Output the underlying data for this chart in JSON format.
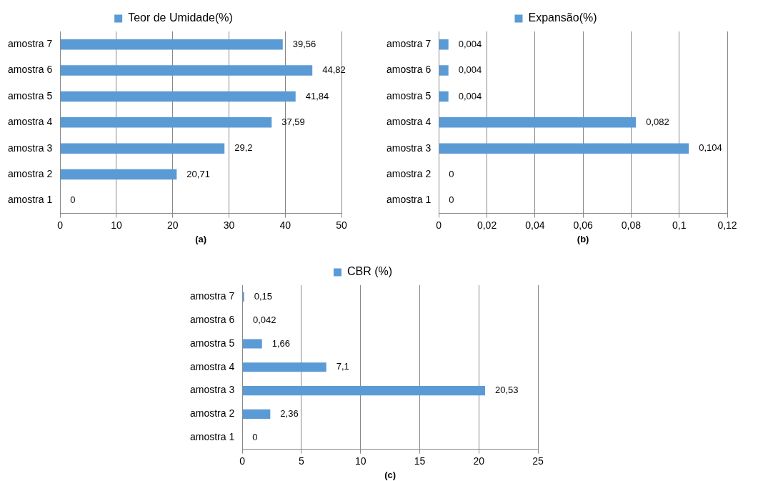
{
  "chart_data": [
    {
      "type": "bar",
      "orientation": "horizontal",
      "xlabel": "(a)",
      "categories": [
        "amostra 7",
        "amostra 6",
        "amostra 5",
        "amostra 4",
        "amostra 3",
        "amostra 2",
        "amostra 1"
      ],
      "series": [
        {
          "name": "Teor de Umidade(%)",
          "color": "#5b9bd5",
          "values": [
            39.56,
            44.82,
            41.84,
            37.59,
            29.2,
            20.71,
            0
          ],
          "value_labels": [
            "39,56",
            "44,82",
            "41,84",
            "37,59",
            "29,2",
            "20,71",
            "0"
          ]
        }
      ],
      "xlim": [
        0,
        50
      ],
      "xticks": [
        0,
        10,
        20,
        30,
        40,
        50
      ],
      "grid": "x",
      "legend": "top"
    },
    {
      "type": "bar",
      "orientation": "horizontal",
      "xlabel": "(b)",
      "categories": [
        "amostra 7",
        "amostra 6",
        "amostra 5",
        "amostra 4",
        "amostra 3",
        "amostra 2",
        "amostra 1"
      ],
      "series": [
        {
          "name": "Expansão(%)",
          "color": "#5b9bd5",
          "values": [
            0.004,
            0.004,
            0.004,
            0.082,
            0.104,
            0,
            0
          ],
          "value_labels": [
            "0,004",
            "0,004",
            "0,004",
            "0,082",
            "0,104",
            "0",
            "0"
          ]
        }
      ],
      "xlim": [
        0,
        0.12
      ],
      "xticks": [
        0,
        {
          "value": 0.02,
          "label": "0,02"
        },
        {
          "value": 0.04,
          "label": "0,04"
        },
        {
          "value": 0.06,
          "label": "0,06"
        },
        {
          "value": 0.08,
          "label": "0,08"
        },
        {
          "value": 0.1,
          "label": "0,1"
        },
        {
          "value": 0.12,
          "label": "0,12"
        }
      ],
      "grid": "x",
      "legend": "top"
    },
    {
      "type": "bar",
      "orientation": "horizontal",
      "xlabel": "(c)",
      "categories": [
        "amostra 7",
        "amostra 6",
        "amostra 5",
        "amostra 4",
        "amostra 3",
        "amostra 2",
        "amostra 1"
      ],
      "series": [
        {
          "name": "CBR (%)",
          "color": "#5b9bd5",
          "values": [
            0.15,
            0.042,
            1.66,
            7.1,
            20.53,
            2.36,
            0
          ],
          "value_labels": [
            "0,15",
            "0,042",
            "1,66",
            "7,1",
            "20,53",
            "2,36",
            "0"
          ]
        }
      ],
      "xlim": [
        0,
        25
      ],
      "xticks": [
        0,
        5,
        10,
        15,
        20,
        25
      ],
      "grid": "x",
      "legend": "top"
    }
  ]
}
